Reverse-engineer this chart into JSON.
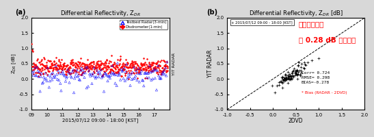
{
  "panel_a": {
    "title": "Differential Reflectivity, Z$_{DR}$",
    "xlabel": "2015/07/12 09:00 - 18:00 [KST]",
    "ylabel": "Z$_{DR}$ [dB]",
    "xlim": [
      9,
      18
    ],
    "ylim": [
      -1.0,
      2.0
    ],
    "xticks": [
      9,
      10,
      11,
      12,
      13,
      14,
      15,
      16,
      17,
      18
    ],
    "xtick_labels": [
      "09",
      "10",
      "11",
      "12",
      "13",
      "14",
      "15",
      "16",
      "17",
      ""
    ],
    "yticks": [
      -1.0,
      -0.5,
      0.0,
      0.5,
      1.0,
      1.5,
      2.0
    ],
    "ytick_labels": [
      "-1.0",
      "-0.5",
      "0.0",
      "0.5",
      "1.0",
      "1.5",
      "2.0"
    ],
    "legend": [
      {
        "label": "Testbed Radar(3-min)",
        "color": "blue",
        "marker": "^"
      },
      {
        "label": "Disdrometer(1-min)",
        "color": "red",
        "marker": "D"
      }
    ],
    "radar_mean": 0.15,
    "radar_std": 0.15,
    "disdrometer_mean": 0.4,
    "disdrometer_std": 0.13,
    "seed_radar": 42,
    "seed_disdrometer": 7,
    "n_radar": 180,
    "n_disdrometer": 540
  },
  "panel_b": {
    "title": "Differential Reflectivity, Z$_{DR}$ [dB]",
    "xlabel": "2DVD",
    "ylabel": "YIT RADAR",
    "xlim": [
      -1.0,
      2.0
    ],
    "ylim": [
      -1.0,
      2.0
    ],
    "xticks": [
      -1.0,
      -0.5,
      0.0,
      0.5,
      1.0,
      1.5,
      2.0
    ],
    "yticks": [
      -1.0,
      -0.5,
      0.0,
      0.5,
      1.0,
      1.5,
      2.0
    ],
    "xtick_labels": [
      "-1.0",
      "-0.5",
      "0.0",
      "0.5",
      "1.0",
      "1.5",
      "2.0"
    ],
    "ytick_labels": [
      "-1.0",
      "-0.5",
      "0.0",
      "0.5",
      "1.0",
      "1.5",
      "2.0"
    ],
    "legend_text": "+ 2015/07/12 09:00 - 18:00 [KST]",
    "annotation_line1": "용인레이더가",
    "annotation_line2": "약 0.28 dB 과소관측",
    "stats_text": "Corr= 0.724\nRMSE= 0.298\nBIAS=-0.278",
    "bias_label": "* Bias (RADAR - 2DVD)",
    "data_mean_x": 0.38,
    "data_std_x": 0.14,
    "bias": -0.278,
    "scatter_noise": 0.1,
    "n_scatter": 95,
    "seed_scatter": 123
  },
  "label_a": "(a)",
  "label_b": "(b)",
  "background_color": "#d8d8d8",
  "plot_bg": "#ffffff"
}
